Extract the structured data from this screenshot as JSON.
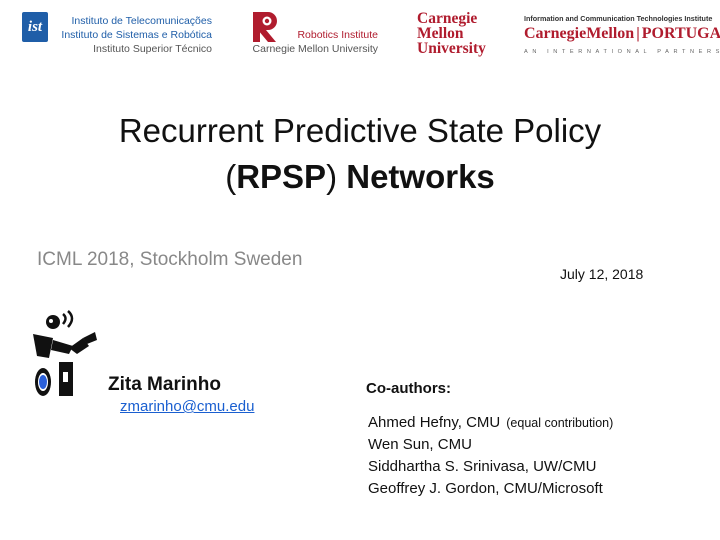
{
  "logos": {
    "ist": {
      "badge": "ist",
      "line1": "Instituto de Telecomunicações",
      "line2": "Instituto de Sistemas e Robótica",
      "line3": "Instituto Superior Técnico",
      "color": "#1f5ea8"
    },
    "robotics": {
      "icon": "robotics-institute-r-icon",
      "line1": "Robotics Institute",
      "line2": "Carnegie Mellon University",
      "color": "#b01c2e"
    },
    "cmu": {
      "line1": "Carnegie",
      "line2": "Mellon",
      "line3": "University",
      "color": "#b01c2e"
    },
    "cmu_portugal": {
      "top": "Information and Communication Technologies Institute",
      "brand": "CarnegieMellon",
      "separator": "|",
      "region": "PORTUGAL",
      "tagline": "AN INTERNATIONAL PARTNERSHIP"
    }
  },
  "slide": {
    "title_line1": "Recurrent Predictive State Policy",
    "title_open_paren": "(",
    "title_acronym": "RPSP",
    "title_close_paren": ")",
    "title_rest": "Networks",
    "venue": "ICML 2018, Stockholm Sweden",
    "date": "July 12, 2018"
  },
  "presenter": {
    "avatar_icon": "robot-avatar-icon",
    "name": "Zita Marinho",
    "email": "zmarinho@cmu.edu"
  },
  "coauthors": {
    "label": "Co-authors:",
    "list": [
      {
        "name": "Ahmed Hefny, CMU",
        "note": "(equal contribution)"
      },
      {
        "name": "Wen Sun, CMU",
        "note": ""
      },
      {
        "name": "Siddhartha S. Srinivasa, UW/CMU",
        "note": ""
      },
      {
        "name": "Geoffrey J. Gordon, CMU/Microsoft",
        "note": ""
      }
    ]
  },
  "colors": {
    "link": "#1a5fd0",
    "venue_gray": "#888888",
    "cmu_red": "#b01c2e",
    "ist_blue": "#1f5ea8"
  }
}
